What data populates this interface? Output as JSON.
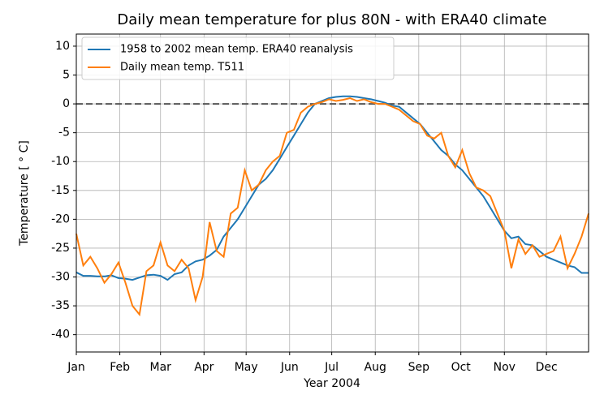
{
  "chart_data": {
    "type": "line",
    "title": "Daily mean temperature for plus 80N - with ERA40 climate",
    "xlabel": "Year 2004",
    "ylabel": "Temperature [ ° C]",
    "x": [
      0,
      5,
      10,
      15,
      20,
      25,
      30,
      35,
      40,
      45,
      50,
      55,
      60,
      65,
      70,
      75,
      80,
      85,
      90,
      95,
      100,
      105,
      110,
      115,
      120,
      125,
      130,
      135,
      140,
      145,
      150,
      155,
      160,
      165,
      170,
      175,
      180,
      185,
      190,
      195,
      200,
      205,
      210,
      215,
      220,
      225,
      230,
      235,
      240,
      245,
      250,
      255,
      260,
      265,
      270,
      275,
      280,
      285,
      290,
      295,
      300,
      305,
      310,
      315,
      320,
      325,
      330,
      335,
      340,
      345,
      350,
      355,
      360,
      365
    ],
    "series": [
      {
        "name": "1958 to 2002 mean temp. ERA40 reanalysis",
        "color": "#1f77b4",
        "values": [
          -29.2,
          -29.8,
          -29.8,
          -29.9,
          -29.9,
          -29.7,
          -30.2,
          -30.3,
          -30.5,
          -30.1,
          -29.7,
          -29.6,
          -29.8,
          -30.5,
          -29.5,
          -29.2,
          -28,
          -27.3,
          -27,
          -26.3,
          -25.3,
          -23,
          -21.5,
          -20,
          -18,
          -16,
          -14,
          -13,
          -11.5,
          -9.5,
          -7.5,
          -5.5,
          -3.5,
          -1.5,
          0,
          0.5,
          1,
          1.2,
          1.3,
          1.3,
          1.2,
          1,
          0.8,
          0.5,
          0.2,
          -0.3,
          -0.5,
          -1.5,
          -2.5,
          -3.5,
          -5,
          -6.5,
          -8,
          -9,
          -10.5,
          -11.5,
          -13,
          -14.5,
          -16,
          -18,
          -20,
          -22,
          -23.3,
          -23,
          -24.3,
          -24.5,
          -25.5,
          -26.5,
          -27,
          -27.5,
          -28,
          -28.3,
          -29.3,
          -29.3
        ]
      },
      {
        "name": "Daily mean temp. T511",
        "color": "#ff7f0e",
        "values": [
          -22.5,
          -28,
          -26.5,
          -28.5,
          -31,
          -29.5,
          -27.5,
          -31,
          -35,
          -36.5,
          -29,
          -28,
          -24,
          -28,
          -29,
          -27,
          -28.5,
          -34,
          -30,
          -20.5,
          -25.5,
          -26.5,
          -19,
          -18,
          -11.5,
          -15,
          -14,
          -11.5,
          -10,
          -9,
          -5,
          -4.5,
          -1.5,
          -0.5,
          0,
          0.3,
          0.8,
          0.5,
          0.7,
          1,
          0.5,
          0.8,
          0.3,
          0,
          0,
          -0.5,
          -1,
          -2,
          -3,
          -3.5,
          -5.5,
          -6,
          -5,
          -9,
          -11,
          -8,
          -12,
          -14.5,
          -15,
          -16,
          -19,
          -22,
          -28.5,
          -23.5,
          -26,
          -24.5,
          -26.5,
          -26,
          -25.5,
          -23,
          -28.5,
          -26,
          -23,
          -19
        ]
      }
    ],
    "xlim": [
      0,
      365
    ],
    "xticks": [
      {
        "value": 0,
        "label": "Jan"
      },
      {
        "value": 31,
        "label": "Feb"
      },
      {
        "value": 60,
        "label": "Mar"
      },
      {
        "value": 91,
        "label": "Apr"
      },
      {
        "value": 121,
        "label": "May"
      },
      {
        "value": 152,
        "label": "Jun"
      },
      {
        "value": 182,
        "label": "Jul"
      },
      {
        "value": 213,
        "label": "Aug"
      },
      {
        "value": 244,
        "label": "Sep"
      },
      {
        "value": 274,
        "label": "Oct"
      },
      {
        "value": 305,
        "label": "Nov"
      },
      {
        "value": 335,
        "label": "Dec"
      }
    ],
    "ylim": [
      -43,
      12.1
    ],
    "yticks": [
      -40,
      -35,
      -30,
      -25,
      -20,
      -15,
      -10,
      -5,
      0,
      5,
      10
    ],
    "hline": 0,
    "grid": true,
    "legend": "upper left"
  }
}
